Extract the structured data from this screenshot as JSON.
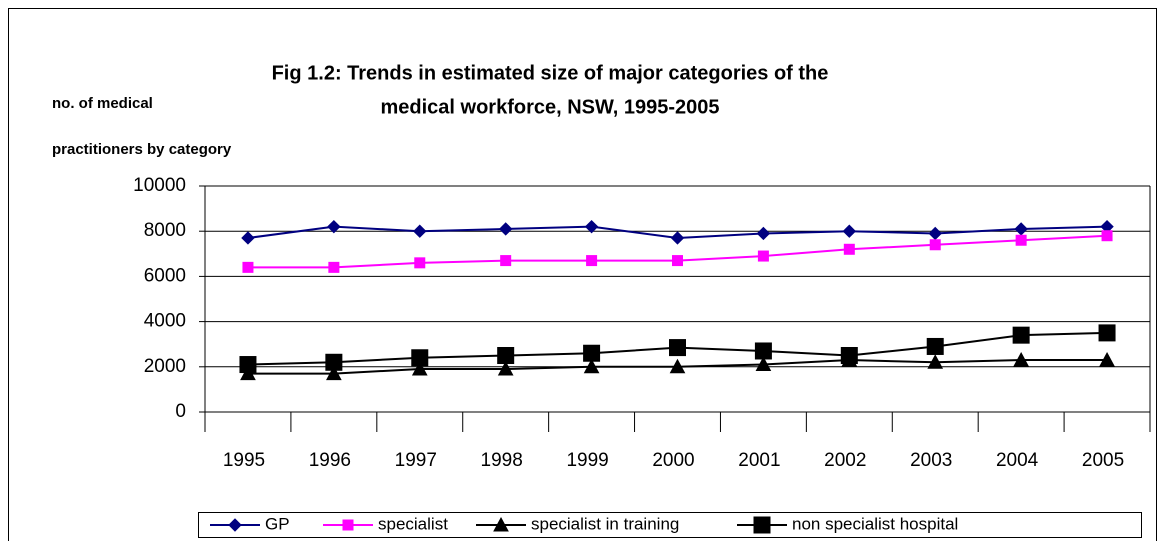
{
  "chart_data": {
    "type": "line",
    "title": [
      "Fig 1.2: Trends in estimated size of major categories of the",
      "medical workforce, NSW, 1995-2005"
    ],
    "y_label": [
      "no. of medical",
      "practitioners by category"
    ],
    "categories": [
      "1995",
      "1996",
      "1997",
      "1998",
      "1999",
      "2000",
      "2001",
      "2002",
      "2003",
      "2004",
      "2005"
    ],
    "ylim": [
      0,
      10000
    ],
    "yticks": [
      0,
      2000,
      4000,
      6000,
      8000,
      10000
    ],
    "grid": true,
    "legend": "bottom",
    "series": [
      {
        "name": "GP",
        "color": "#000080",
        "marker": "diamond",
        "values": [
          7700,
          8200,
          8000,
          8100,
          8200,
          7700,
          7900,
          8000,
          7900,
          8100,
          8200
        ]
      },
      {
        "name": "specialist",
        "color": "#ff00ff",
        "marker": "square",
        "values": [
          6400,
          6400,
          6600,
          6700,
          6700,
          6700,
          6900,
          7200,
          7400,
          7600,
          7800
        ]
      },
      {
        "name": "specialist in training",
        "color": "#000000",
        "marker": "triangle",
        "values": [
          1700,
          1700,
          1900,
          1900,
          2000,
          2000,
          2100,
          2300,
          2200,
          2300,
          2300
        ]
      },
      {
        "name": "non specialist hospital",
        "color": "#000000",
        "marker": "bigsquare",
        "values": [
          2100,
          2200,
          2400,
          2500,
          2600,
          2850,
          2700,
          2500,
          2900,
          3400,
          3500
        ]
      }
    ]
  }
}
